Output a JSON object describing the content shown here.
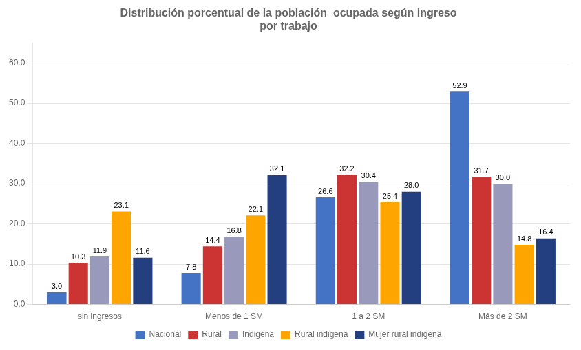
{
  "chart_data": {
    "type": "bar",
    "title": "Distribución porcentual de la población  ocupada según ingreso\npor trabajo",
    "categories": [
      "sin ingresos",
      "Menos de 1 SM",
      "1 a 2 SM",
      "Más de 2 SM"
    ],
    "series": [
      {
        "name": "Nacional",
        "color": "#4472C4",
        "values": [
          3.0,
          7.8,
          26.6,
          52.9
        ],
        "value_labels": [
          "3.0",
          "7.8",
          "26.6",
          "52.9"
        ]
      },
      {
        "name": "Rural",
        "color": "#CC3333",
        "values": [
          10.3,
          14.4,
          32.2,
          31.7
        ],
        "value_labels": [
          "10.3",
          "14.4",
          "32.2",
          "31.7"
        ]
      },
      {
        "name": "Indigena",
        "color": "#9999BB",
        "values": [
          11.9,
          16.8,
          30.4,
          30.0
        ],
        "value_labels": [
          "11.9",
          "16.8",
          "30.4",
          "30.0"
        ]
      },
      {
        "name": "Rural indigena",
        "color": "#FFA500",
        "values": [
          23.1,
          22.1,
          25.4,
          14.8
        ],
        "value_labels": [
          "23.1",
          "22.1",
          "25.4",
          "14.8"
        ]
      },
      {
        "name": "Mujer rural indigena",
        "color": "#243F7F",
        "values": [
          11.6,
          32.1,
          28.0,
          16.4
        ],
        "value_labels": [
          "11.6",
          "32.1",
          "28.0",
          "16.4"
        ]
      }
    ],
    "ylim": [
      0,
      65
    ],
    "yticks": [
      {
        "value": 0,
        "label": "0.0"
      },
      {
        "value": 10,
        "label": "10.0"
      },
      {
        "value": 20,
        "label": "20.0"
      },
      {
        "value": 30,
        "label": "30.0"
      },
      {
        "value": 40,
        "label": "40.0"
      },
      {
        "value": 50,
        "label": "50.0"
      },
      {
        "value": 60,
        "label": "60.0"
      }
    ],
    "grid": true,
    "legend": "bottom",
    "data_labels": true
  }
}
